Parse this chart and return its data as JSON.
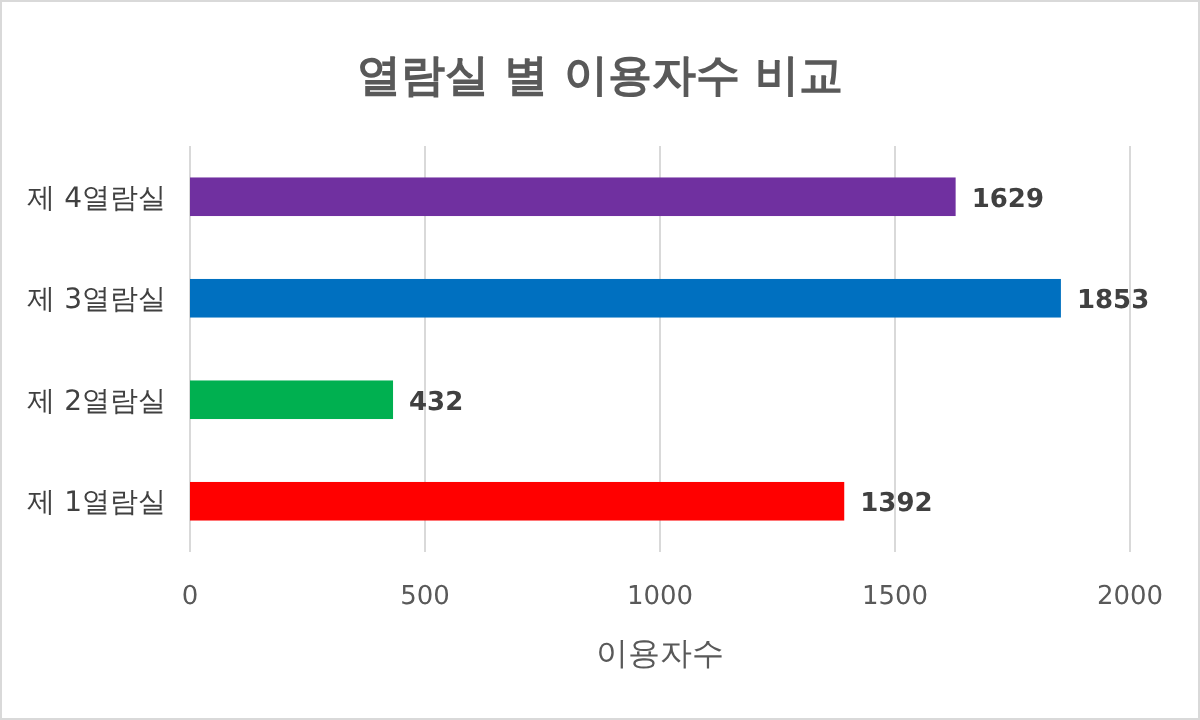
{
  "chart_data": {
    "type": "bar",
    "orientation": "horizontal",
    "title": "열람실 별 이용자수 비교",
    "xlabel": "이용자수",
    "categories": [
      "제 4열람실",
      "제 3열람실",
      "제 2열람실",
      "제 1열람실"
    ],
    "values": [
      1629,
      1853,
      432,
      1392
    ],
    "colors": [
      "#7030a0",
      "#0070c0",
      "#00b050",
      "#ff0000"
    ],
    "xlim": [
      0,
      2000
    ],
    "xticks": [
      0,
      500,
      1000,
      1500,
      2000
    ],
    "grid": "x",
    "data_labels": true
  }
}
